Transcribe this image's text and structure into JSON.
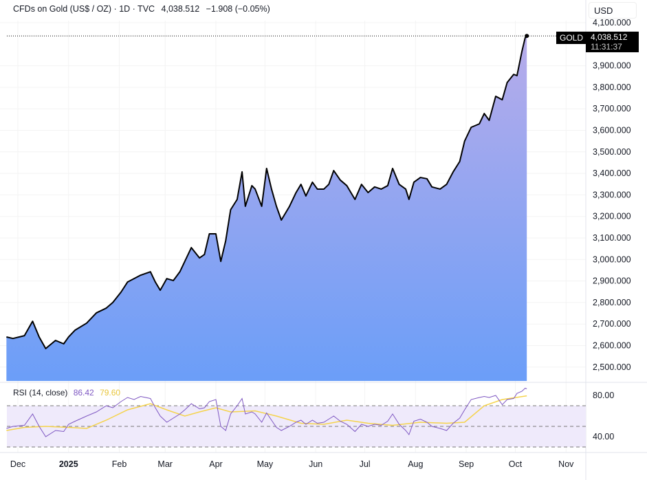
{
  "header": {
    "symbol": "CFDs on Gold (US$ / OZ) · 1D · TVC",
    "price": "4,038.512",
    "change": "−1.908 (−0.05%)"
  },
  "currency_button": "USD",
  "price_tag": {
    "label": "GOLD",
    "price": "4,038.512",
    "countdown": "11:31:37"
  },
  "rsi_legend": {
    "label": "RSI (14, close)",
    "rsi": "86.42",
    "ma": "79.60"
  },
  "colors": {
    "line": "#000000",
    "area_top": "#b7acea",
    "area_bottom": "#6b9ef8",
    "rsi": "#7e57c2",
    "rsi_ma": "#f5d34a",
    "rsi_band": "#efeafb"
  },
  "chart_data": [
    {
      "type": "area",
      "title": "CFDs on Gold (US$ / OZ) · 1D · TVC",
      "ylim": [
        2450,
        4130
      ],
      "y_ticks": [
        "4,100.000",
        "3,900.000",
        "3,800.000",
        "3,700.000",
        "3,600.000",
        "3,500.000",
        "3,400.000",
        "3,300.000",
        "3,200.000",
        "3,100.000",
        "3,000.000",
        "2,900.000",
        "2,800.000",
        "2,700.000",
        "2,600.000",
        "2,500.000"
      ],
      "x_ticks": [
        {
          "label": "Dec",
          "date": "2024-12-01"
        },
        {
          "label": "2025",
          "date": "2025-01-01"
        },
        {
          "label": "Feb",
          "date": "2025-02-01"
        },
        {
          "label": "Mar",
          "date": "2025-03-01"
        },
        {
          "label": "Apr",
          "date": "2025-04-01"
        },
        {
          "label": "May",
          "date": "2025-05-01"
        },
        {
          "label": "Jun",
          "date": "2025-06-01"
        },
        {
          "label": "Jul",
          "date": "2025-07-01"
        },
        {
          "label": "Aug",
          "date": "2025-08-01"
        },
        {
          "label": "Sep",
          "date": "2025-09-01"
        },
        {
          "label": "Oct",
          "date": "2025-10-01"
        },
        {
          "label": "Nov",
          "date": "2025-11-01"
        }
      ],
      "dates": [
        "2024-11-24",
        "2024-11-28",
        "2024-12-05",
        "2024-12-10",
        "2024-12-14",
        "2024-12-18",
        "2024-12-24",
        "2024-12-29",
        "2025-01-01",
        "2025-01-05",
        "2025-01-12",
        "2025-01-18",
        "2025-01-24",
        "2025-01-28",
        "2025-02-02",
        "2025-02-06",
        "2025-02-10",
        "2025-02-14",
        "2025-02-20",
        "2025-02-23",
        "2025-02-26",
        "2025-03-02",
        "2025-03-06",
        "2025-03-10",
        "2025-03-13",
        "2025-03-17",
        "2025-03-22",
        "2025-03-25",
        "2025-03-28",
        "2025-04-01",
        "2025-04-04",
        "2025-04-07",
        "2025-04-10",
        "2025-04-14",
        "2025-04-17",
        "2025-04-19",
        "2025-04-23",
        "2025-04-25",
        "2025-04-29",
        "2025-05-02",
        "2025-05-05",
        "2025-05-08",
        "2025-05-11",
        "2025-05-16",
        "2025-05-20",
        "2025-05-23",
        "2025-05-26",
        "2025-05-30",
        "2025-06-02",
        "2025-06-06",
        "2025-06-09",
        "2025-06-12",
        "2025-06-16",
        "2025-06-20",
        "2025-06-25",
        "2025-06-29",
        "2025-07-03",
        "2025-07-07",
        "2025-07-11",
        "2025-07-15",
        "2025-07-18",
        "2025-07-22",
        "2025-07-26",
        "2025-07-28",
        "2025-07-31",
        "2025-08-04",
        "2025-08-08",
        "2025-08-11",
        "2025-08-16",
        "2025-08-20",
        "2025-08-24",
        "2025-08-28",
        "2025-08-31",
        "2025-09-04",
        "2025-09-09",
        "2025-09-12",
        "2025-09-15",
        "2025-09-19",
        "2025-09-23",
        "2025-09-26",
        "2025-09-30",
        "2025-10-02",
        "2025-10-05",
        "2025-10-07",
        "2025-10-08"
      ],
      "values": [
        2640,
        2633,
        2646,
        2713,
        2640,
        2586,
        2624,
        2608,
        2640,
        2672,
        2704,
        2752,
        2774,
        2800,
        2848,
        2895,
        2911,
        2927,
        2943,
        2895,
        2857,
        2911,
        2902,
        2943,
        2991,
        3055,
        3007,
        3023,
        3119,
        3119,
        2991,
        3087,
        3231,
        3279,
        3407,
        3247,
        3343,
        3327,
        3247,
        3423,
        3327,
        3247,
        3183,
        3247,
        3311,
        3349,
        3295,
        3359,
        3327,
        3327,
        3349,
        3413,
        3369,
        3343,
        3279,
        3349,
        3311,
        3337,
        3327,
        3343,
        3423,
        3349,
        3327,
        3279,
        3359,
        3381,
        3375,
        3337,
        3327,
        3349,
        3407,
        3455,
        3550,
        3614,
        3630,
        3678,
        3646,
        3758,
        3742,
        3822,
        3860,
        3854,
        3966,
        4030,
        4038.512
      ],
      "last_value": 4038.512
    },
    {
      "type": "line",
      "title": "RSI (14, close)",
      "ylim": [
        25,
        90
      ],
      "y_ticks": [
        "80.00",
        "40.00"
      ],
      "bands": [
        30,
        50,
        70
      ],
      "series": [
        {
          "values": [
            48,
            50,
            51,
            62,
            50,
            40,
            46,
            45,
            52,
            55,
            60,
            64,
            70,
            68,
            74,
            78,
            76,
            79,
            77,
            68,
            60,
            54,
            58,
            62,
            66,
            72,
            67,
            68,
            74,
            76,
            50,
            46,
            62,
            70,
            77,
            62,
            64,
            62,
            54,
            63,
            56,
            49,
            46,
            50,
            54,
            56,
            52,
            56,
            53,
            54,
            57,
            60,
            55,
            52,
            45,
            52,
            50,
            52,
            51,
            55,
            62,
            52,
            46,
            42,
            55,
            57,
            54,
            50,
            48,
            46,
            53,
            58,
            66,
            76,
            78,
            79,
            78,
            80,
            71,
            76,
            77,
            82,
            84,
            87,
            86.42
          ]
        },
        {
          "dates": [
            "2024-11-24",
            "2024-12-05",
            "2024-12-18",
            "2025-01-01",
            "2025-01-12",
            "2025-01-24",
            "2025-02-06",
            "2025-02-20",
            "2025-03-02",
            "2025-03-13",
            "2025-03-22",
            "2025-04-01",
            "2025-04-10",
            "2025-04-25",
            "2025-05-08",
            "2025-05-23",
            "2025-06-06",
            "2025-06-20",
            "2025-07-03",
            "2025-07-18",
            "2025-08-04",
            "2025-08-20",
            "2025-08-31",
            "2025-09-12",
            "2025-09-23",
            "2025-10-08"
          ],
          "values": [
            46,
            49,
            50,
            49,
            48,
            56,
            66,
            72,
            66,
            60,
            64,
            68,
            64,
            65,
            60,
            53,
            52,
            56,
            53,
            51,
            54,
            53,
            54,
            70,
            76,
            79.6
          ]
        }
      ]
    }
  ]
}
